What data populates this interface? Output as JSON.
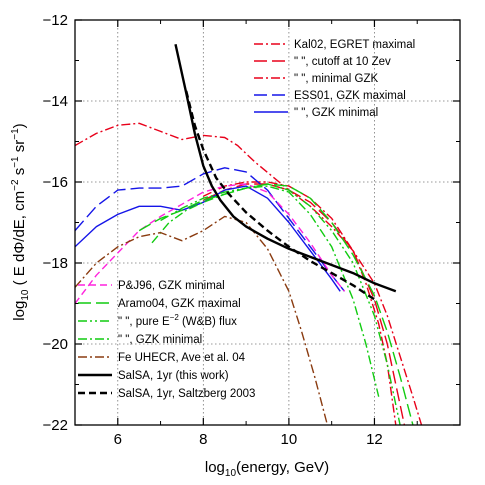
{
  "chart_data": {
    "type": "line",
    "xlabel_parts": [
      "log",
      "10",
      "(energy, GeV)"
    ],
    "ylabel_parts": [
      "log",
      "10",
      " ( E dΦ/dE, cm",
      "−2",
      " s",
      "−1",
      " sr",
      "−1",
      ")"
    ],
    "xlim": [
      5,
      14
    ],
    "ylim": [
      -22,
      -12
    ],
    "xticks": [
      6,
      8,
      10,
      12
    ],
    "xtick_labels": [
      "6",
      "8",
      "10",
      "12"
    ],
    "yticks": [
      -22,
      -20,
      -18,
      -16,
      -14,
      -12
    ],
    "ytick_labels": [
      "−22",
      "−20",
      "−18",
      "−16",
      "−14",
      "−12"
    ],
    "grid": true,
    "legend_placement": [
      "top-right",
      "bottom-left"
    ],
    "series": [
      {
        "name": "Kal02, EGRET maximal",
        "color": "#e8001a",
        "dash": "dashdot",
        "legend_group": "top",
        "x": [
          5,
          5.5,
          6,
          6.5,
          7,
          7.5,
          8,
          8.5,
          8.8,
          9.2,
          10,
          10.5,
          11,
          11.5,
          12,
          12.3,
          12.6,
          12.9,
          13.1
        ],
        "y": [
          -15.1,
          -14.8,
          -14.6,
          -14.55,
          -14.75,
          -14.95,
          -14.85,
          -14.9,
          -15.1,
          -15.5,
          -16.2,
          -16.6,
          -17.1,
          -17.7,
          -18.5,
          -19.3,
          -20.3,
          -21.3,
          -22
        ]
      },
      {
        "name": "\" \", cutoff at 10 Zev",
        "color": "#e8001a",
        "dash": "longdash",
        "legend_group": "top",
        "x": [
          8,
          8.5,
          9,
          9.5,
          10,
          10.5,
          11,
          11.5,
          12,
          12.3,
          12.5,
          12.7
        ],
        "y": [
          -16.45,
          -16.2,
          -16.05,
          -16.05,
          -16.2,
          -16.5,
          -17.0,
          -17.7,
          -18.9,
          -20.0,
          -21.0,
          -22
        ]
      },
      {
        "name": "\" \", minimal GZK",
        "color": "#e8001a",
        "dash": "dashdot",
        "legend_group": "top",
        "x": [
          8,
          8.5,
          9,
          9.5,
          10,
          10.5,
          11,
          11.5,
          11.8,
          12.1,
          12.3,
          12.5
        ],
        "y": [
          -16.35,
          -16.1,
          -16.0,
          -16.0,
          -16.1,
          -16.4,
          -16.9,
          -17.7,
          -18.5,
          -19.5,
          -20.5,
          -22
        ]
      },
      {
        "name": "ESS01, GZK maximal",
        "color": "#1515e8",
        "dash": "longdash",
        "legend_group": "top",
        "x": [
          5,
          5.5,
          6,
          6.5,
          7,
          7.5,
          8,
          8.5,
          9,
          9.5,
          10,
          10.5,
          11,
          11.3
        ],
        "y": [
          -17.2,
          -16.6,
          -16.2,
          -16.15,
          -16.15,
          -16.1,
          -15.8,
          -15.65,
          -15.75,
          -16.2,
          -16.9,
          -17.6,
          -18.3,
          -18.7
        ]
      },
      {
        "name": "\" \", GZK minimal",
        "color": "#1515e8",
        "dash": "solid",
        "legend_group": "top",
        "x": [
          5,
          5.5,
          6,
          6.5,
          7,
          7.5,
          8,
          8.5,
          9,
          9.5,
          10,
          10.5,
          11,
          11.2
        ],
        "y": [
          -17.6,
          -17.1,
          -16.8,
          -16.6,
          -16.6,
          -16.7,
          -16.5,
          -16.2,
          -16.1,
          -16.4,
          -17.0,
          -17.7,
          -18.4,
          -18.7
        ]
      },
      {
        "name": "P&J96, GZK minimal",
        "color": "#ff22dd",
        "dash": "dashed",
        "legend_group": "bottom",
        "x": [
          5,
          5.5,
          6,
          6.5,
          7,
          7.5,
          8,
          8.5,
          9,
          9.5,
          10,
          10.5,
          11,
          11.3
        ],
        "y": [
          -19.0,
          -18.3,
          -17.75,
          -17.2,
          -16.85,
          -16.55,
          -16.25,
          -16.1,
          -16.05,
          -16.25,
          -16.8,
          -17.5,
          -18.3,
          -18.7
        ]
      },
      {
        "name": "Aramo04, GZK maximal",
        "color": "#11cc11",
        "dash": "longdash",
        "legend_group": "bottom",
        "x": [
          6.5,
          7,
          7.5,
          8,
          8.5,
          9,
          9.5,
          10,
          10.5,
          11,
          11.5,
          12,
          12.3,
          12.6,
          12.9
        ],
        "y": [
          -17.2,
          -16.9,
          -16.7,
          -16.45,
          -16.3,
          -16.15,
          -16.05,
          -16.1,
          -16.4,
          -17.0,
          -17.8,
          -18.8,
          -19.7,
          -20.8,
          -22
        ]
      },
      {
        "name": "\" \", pure E^-2 (W&B) flux",
        "color": "#11cc11",
        "dash": "dashdotdot",
        "legend_group": "bottom",
        "x": [
          7,
          7.5,
          8,
          8.5,
          9,
          9.5,
          10,
          10.5,
          11,
          11.5,
          12,
          12.3,
          12.6
        ],
        "y": [
          -16.95,
          -16.65,
          -16.4,
          -16.25,
          -16.15,
          -16.05,
          -16.2,
          -16.6,
          -17.2,
          -18.0,
          -19.3,
          -20.5,
          -22
        ]
      },
      {
        "name": "\" \", GZK minimal",
        "color": "#11cc11",
        "dash": "dashdot",
        "legend_group": "bottom",
        "x": [
          6.8,
          7.2,
          7.6,
          8,
          8.5,
          9,
          9.5,
          10,
          10.5,
          11,
          11.5,
          11.8,
          12.1
        ],
        "y": [
          -17.5,
          -17.0,
          -16.7,
          -16.5,
          -16.3,
          -16.15,
          -16.1,
          -16.25,
          -16.8,
          -17.6,
          -18.9,
          -20.0,
          -21.3
        ]
      },
      {
        "name": "Fe UHECR, Ave et al. 04",
        "color": "#8a3b10",
        "dash": "dashdot",
        "legend_group": "bottom",
        "x": [
          5,
          5.5,
          6,
          6.5,
          7,
          7.5,
          8,
          8.5,
          9,
          9.5,
          10,
          10.3,
          10.6,
          10.9
        ],
        "y": [
          -18.6,
          -18.0,
          -17.6,
          -17.35,
          -17.25,
          -17.45,
          -17.2,
          -16.85,
          -17.0,
          -17.65,
          -18.7,
          -19.7,
          -20.8,
          -22
        ]
      },
      {
        "name": "SalSA, 1yr (this work)",
        "color": "#000000",
        "dash": "solid",
        "bold": true,
        "legend_group": "bottom",
        "x": [
          7.35,
          7.6,
          7.8,
          8.0,
          8.2,
          8.4,
          8.7,
          9.0,
          9.5,
          10,
          10.5,
          11,
          11.5,
          12,
          12.5
        ],
        "y": [
          -12.6,
          -13.8,
          -14.8,
          -15.6,
          -16.1,
          -16.45,
          -16.85,
          -17.1,
          -17.4,
          -17.65,
          -17.85,
          -18.05,
          -18.25,
          -18.5,
          -18.7
        ]
      },
      {
        "name": "SalSA, 1yr, Saltzberg 2003",
        "color": "#000000",
        "dash": "dashed",
        "bold": true,
        "legend_group": "bottom",
        "x": [
          7.6,
          7.8,
          8.0,
          8.3,
          8.6,
          9.0,
          9.5,
          10,
          10.5,
          11,
          11.5,
          12
        ],
        "y": [
          -13.75,
          -14.6,
          -15.2,
          -15.9,
          -16.3,
          -16.75,
          -17.2,
          -17.6,
          -17.95,
          -18.25,
          -18.55,
          -18.9
        ]
      }
    ],
    "legend_top": [
      "Kal02, EGRET maximal",
      "\" \", cutoff at 10 Zev",
      "\" \", minimal GZK",
      "ESS01, GZK maximal",
      "\" \", GZK minimal"
    ],
    "legend_bottom": [
      "P&J96, GZK minimal",
      "Aramo04, GZK maximal",
      "\" \", pure E^-2 (W&B) flux",
      "\" \", GZK minimal",
      "Fe UHECR, Ave et al. 04",
      "SalSA, 1yr (this work)",
      "SalSA, 1yr, Saltzberg 2003"
    ]
  }
}
